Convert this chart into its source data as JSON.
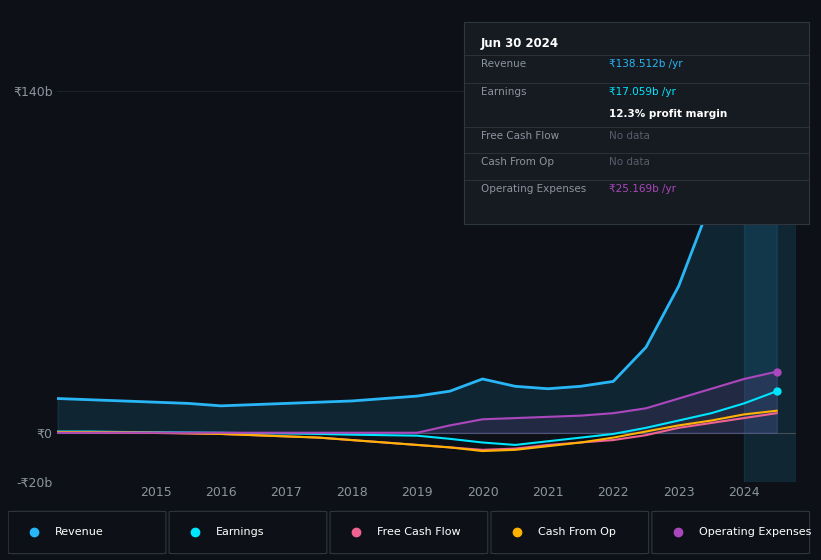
{
  "bg_color": "#0d1117",
  "panel_bg": "#161b22",
  "grid_color": "#21262d",
  "zero_line_color": "#30363d",
  "ylim": [
    -20,
    145
  ],
  "xlim": [
    2013.5,
    2024.8
  ],
  "yticks": [
    -20,
    0,
    140
  ],
  "ytick_labels": [
    "-₹20b",
    "₹0",
    "₹140b"
  ],
  "xticks": [
    2015,
    2016,
    2017,
    2018,
    2019,
    2020,
    2021,
    2022,
    2023,
    2024
  ],
  "years": [
    2013.5,
    2014.0,
    2014.5,
    2015.0,
    2015.5,
    2016.0,
    2016.5,
    2017.0,
    2017.5,
    2018.0,
    2018.5,
    2019.0,
    2019.5,
    2020.0,
    2020.5,
    2021.0,
    2021.5,
    2022.0,
    2022.5,
    2023.0,
    2023.5,
    2024.0,
    2024.5
  ],
  "revenue": [
    14,
    13.5,
    13,
    12.5,
    12,
    11,
    11.5,
    12,
    12.5,
    13,
    14,
    15,
    17,
    22,
    19,
    18,
    19,
    21,
    35,
    60,
    95,
    130,
    138
  ],
  "earnings": [
    0.5,
    0.5,
    0.3,
    0.2,
    0.1,
    0.0,
    -0.2,
    -0.3,
    -0.5,
    -0.8,
    -1.0,
    -1.2,
    -2.5,
    -4.0,
    -5.0,
    -3.5,
    -2.0,
    -0.5,
    2.0,
    5.0,
    8.0,
    12.0,
    17.0
  ],
  "free_cash_flow": [
    0.2,
    0.1,
    0.0,
    -0.1,
    -0.3,
    -0.5,
    -1.0,
    -1.5,
    -2.0,
    -3.0,
    -4.0,
    -5.0,
    -6.0,
    -7.0,
    -6.5,
    -5.0,
    -4.0,
    -3.0,
    -1.0,
    2.0,
    4.0,
    6.0,
    8.0
  ],
  "cash_from_op": [
    0.3,
    0.2,
    0.1,
    0.0,
    -0.2,
    -0.5,
    -1.0,
    -1.5,
    -2.0,
    -3.0,
    -4.0,
    -5.0,
    -6.0,
    -7.5,
    -7.0,
    -5.5,
    -4.0,
    -2.0,
    0.5,
    3.0,
    5.0,
    7.5,
    9.0
  ],
  "operating_expenses": [
    0.0,
    0.0,
    0.0,
    0.0,
    0.0,
    0.0,
    0.0,
    0.0,
    0.0,
    0.0,
    0.0,
    0.0,
    3.0,
    5.5,
    6.0,
    6.5,
    7.0,
    8.0,
    10.0,
    14.0,
    18.0,
    22.0,
    25.0
  ],
  "revenue_color": "#29b6f6",
  "earnings_color": "#00e5ff",
  "free_cash_flow_color": "#f06292",
  "cash_from_op_color": "#ffb300",
  "operating_expenses_color": "#ab47bc",
  "shade_start": 2024.0,
  "info_panel": {
    "date": "Jun 30 2024",
    "revenue_label": "Revenue",
    "revenue_val": "₹138.512b /yr",
    "earnings_label": "Earnings",
    "earnings_val": "₹17.059b /yr",
    "profit_margin": "12.3% profit margin",
    "fcf_label": "Free Cash Flow",
    "fcf_val": "No data",
    "cfo_label": "Cash From Op",
    "cfo_val": "No data",
    "opex_label": "Operating Expenses",
    "opex_val": "₹25.169b /yr"
  },
  "legend_items": [
    "Revenue",
    "Earnings",
    "Free Cash Flow",
    "Cash From Op",
    "Operating Expenses"
  ],
  "legend_colors": [
    "#29b6f6",
    "#00e5ff",
    "#f06292",
    "#ffb300",
    "#ab47bc"
  ]
}
